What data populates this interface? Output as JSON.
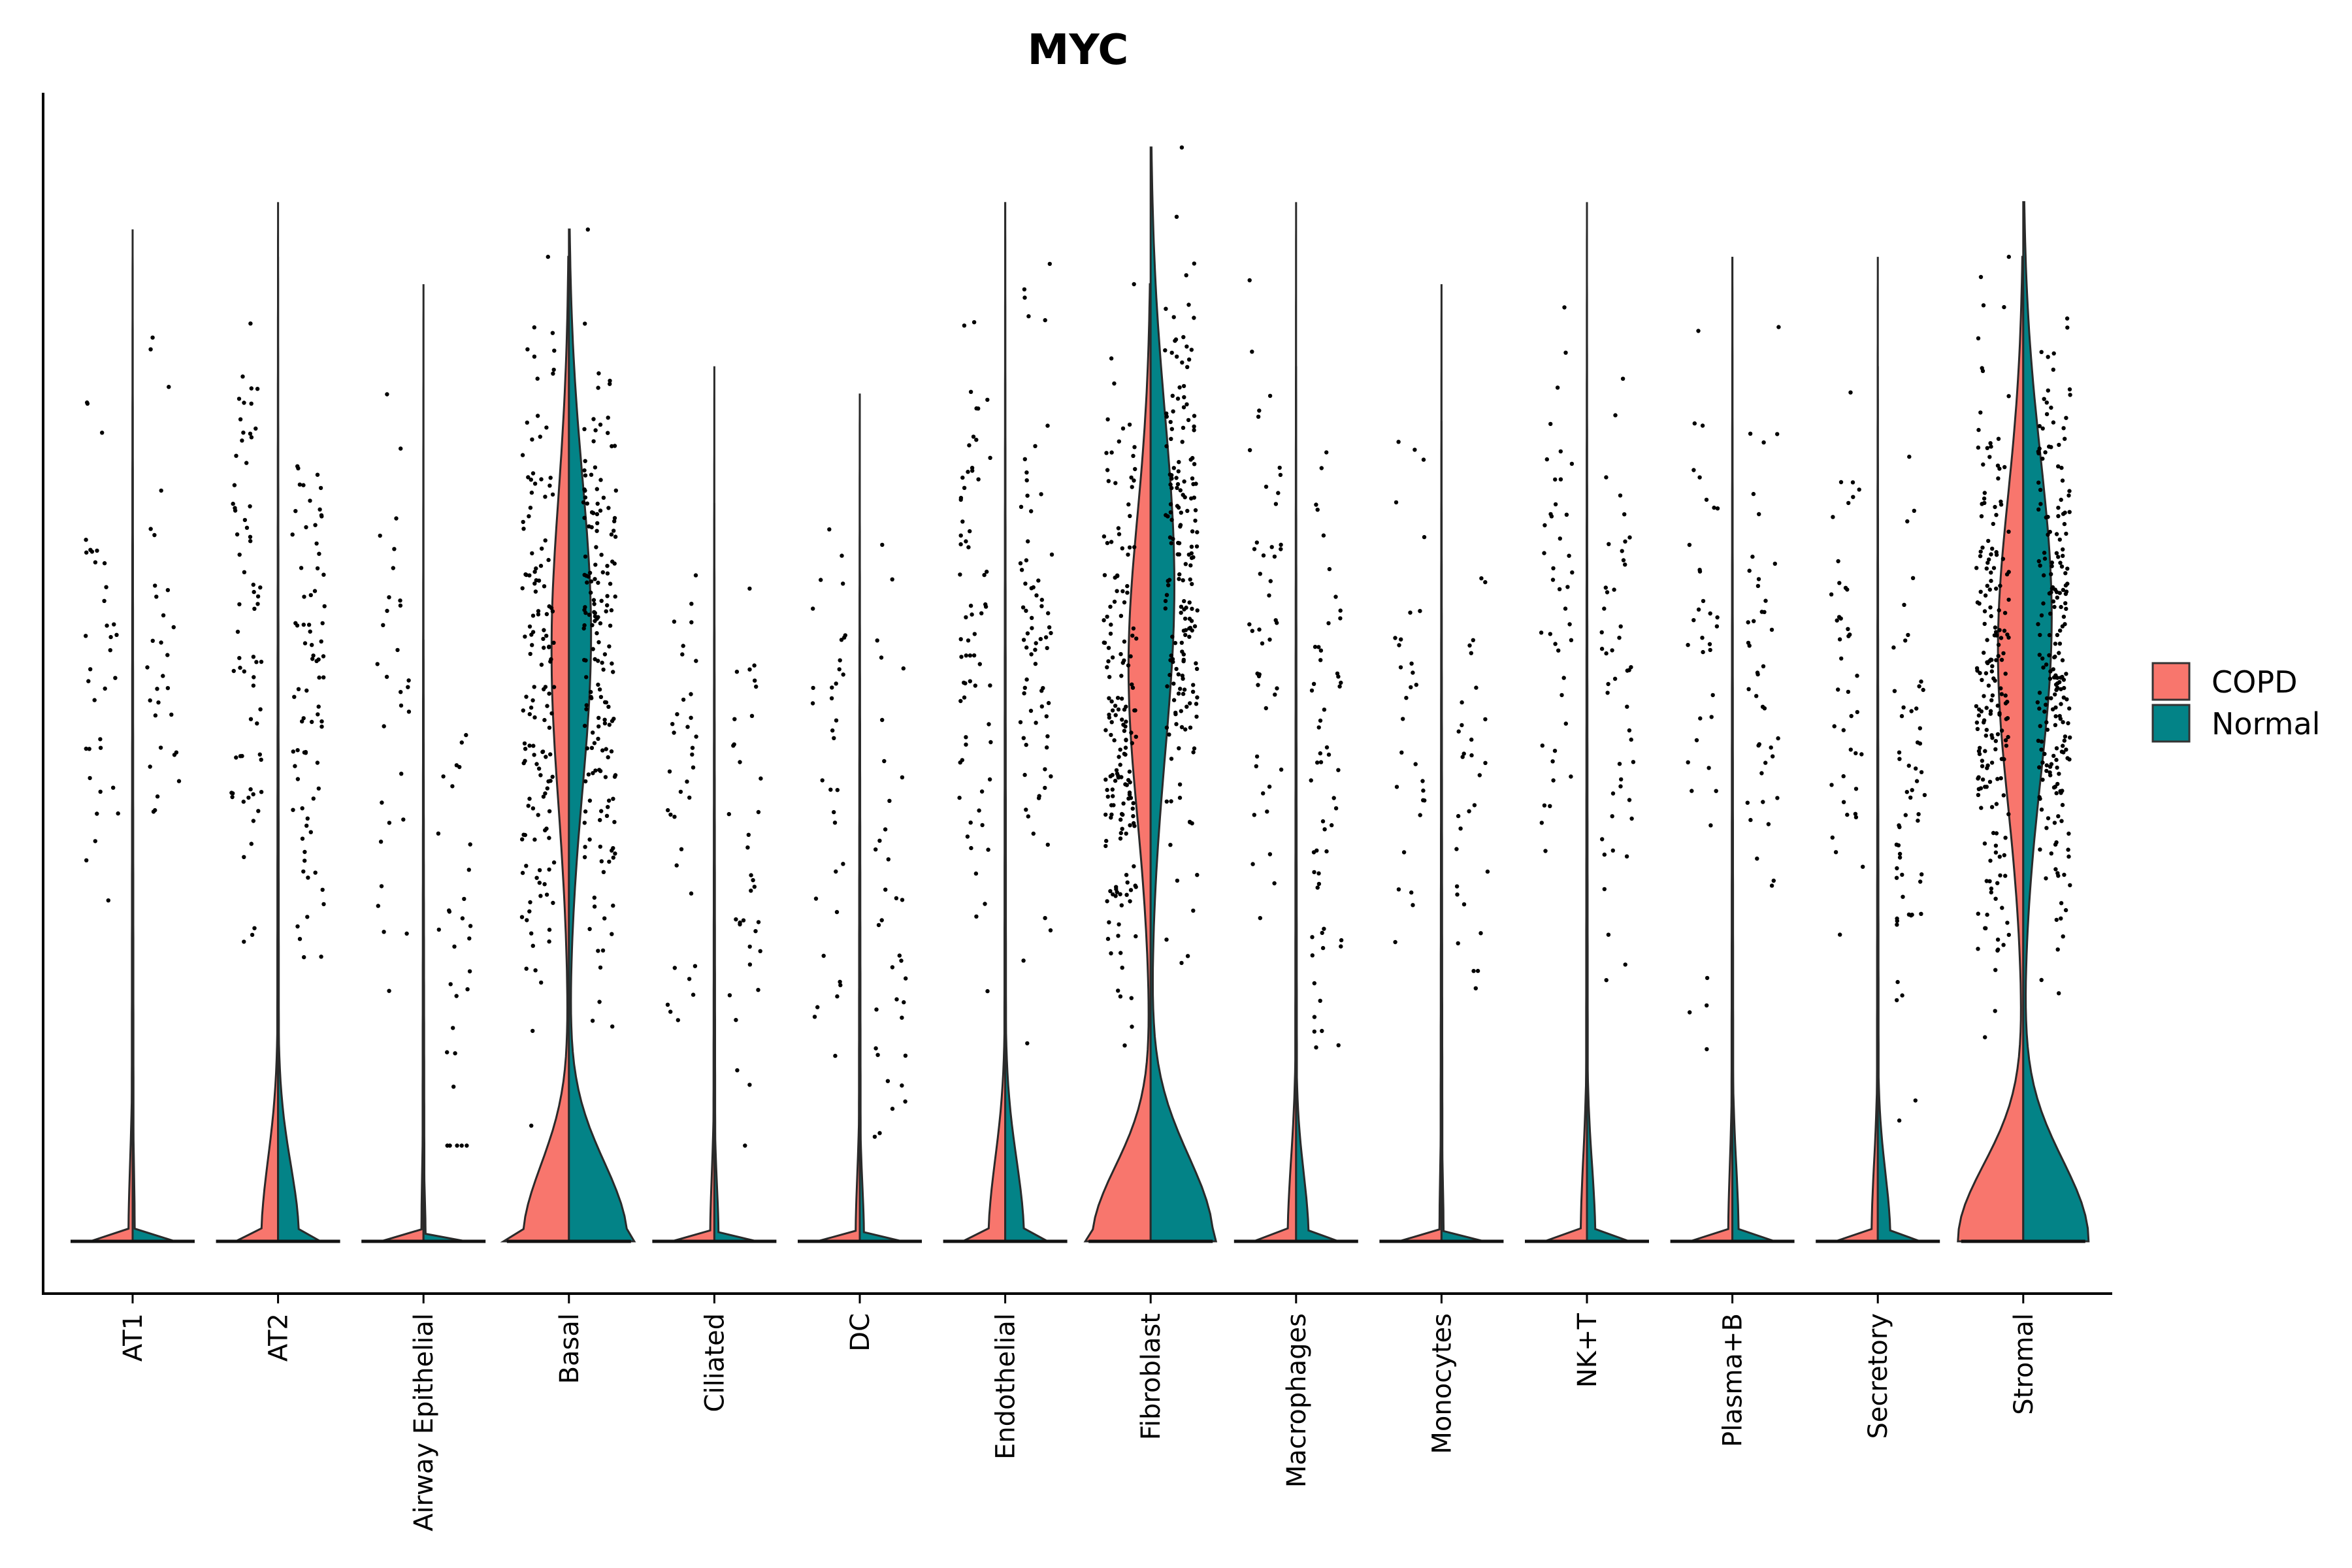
{
  "chart_data": {
    "type": "violin",
    "title": "MYC",
    "xlabel": "",
    "ylabel": "",
    "split_violin": true,
    "categories": [
      "AT1",
      "AT2",
      "Airway Epithelial",
      "Basal",
      "Ciliated",
      "DC",
      "Endothelial",
      "Fibroblast",
      "Macrophages",
      "Monocytes",
      "NK+T",
      "Plasma+B",
      "Secretory",
      "Stromal"
    ],
    "series": [
      {
        "name": "COPD",
        "color": "#F8766D",
        "max_expression": [
          3.7,
          3.8,
          3.5,
          3.6,
          3.2,
          3.1,
          3.8,
          3.5,
          3.8,
          3.5,
          3.8,
          3.6,
          3.6,
          3.6
        ],
        "nonzero_fraction": [
          0.02,
          0.08,
          0.01,
          0.22,
          0.02,
          0.02,
          0.08,
          0.28,
          0.04,
          0.01,
          0.03,
          0.02,
          0.03,
          0.32
        ]
      },
      {
        "name": "Normal",
        "color": "#038387",
        "max_expression": [
          3.7,
          3.6,
          2.2,
          3.7,
          2.7,
          2.7,
          3.8,
          4.0,
          3.2,
          3.0,
          3.6,
          3.6,
          3.2,
          3.8
        ],
        "nonzero_fraction": [
          0.01,
          0.1,
          0.01,
          0.28,
          0.02,
          0.02,
          0.09,
          0.3,
          0.06,
          0.01,
          0.04,
          0.03,
          0.06,
          0.36
        ]
      }
    ],
    "ylim": [
      0,
      4.2
    ],
    "grid": false,
    "legend_position": "right",
    "points_shown": true
  }
}
